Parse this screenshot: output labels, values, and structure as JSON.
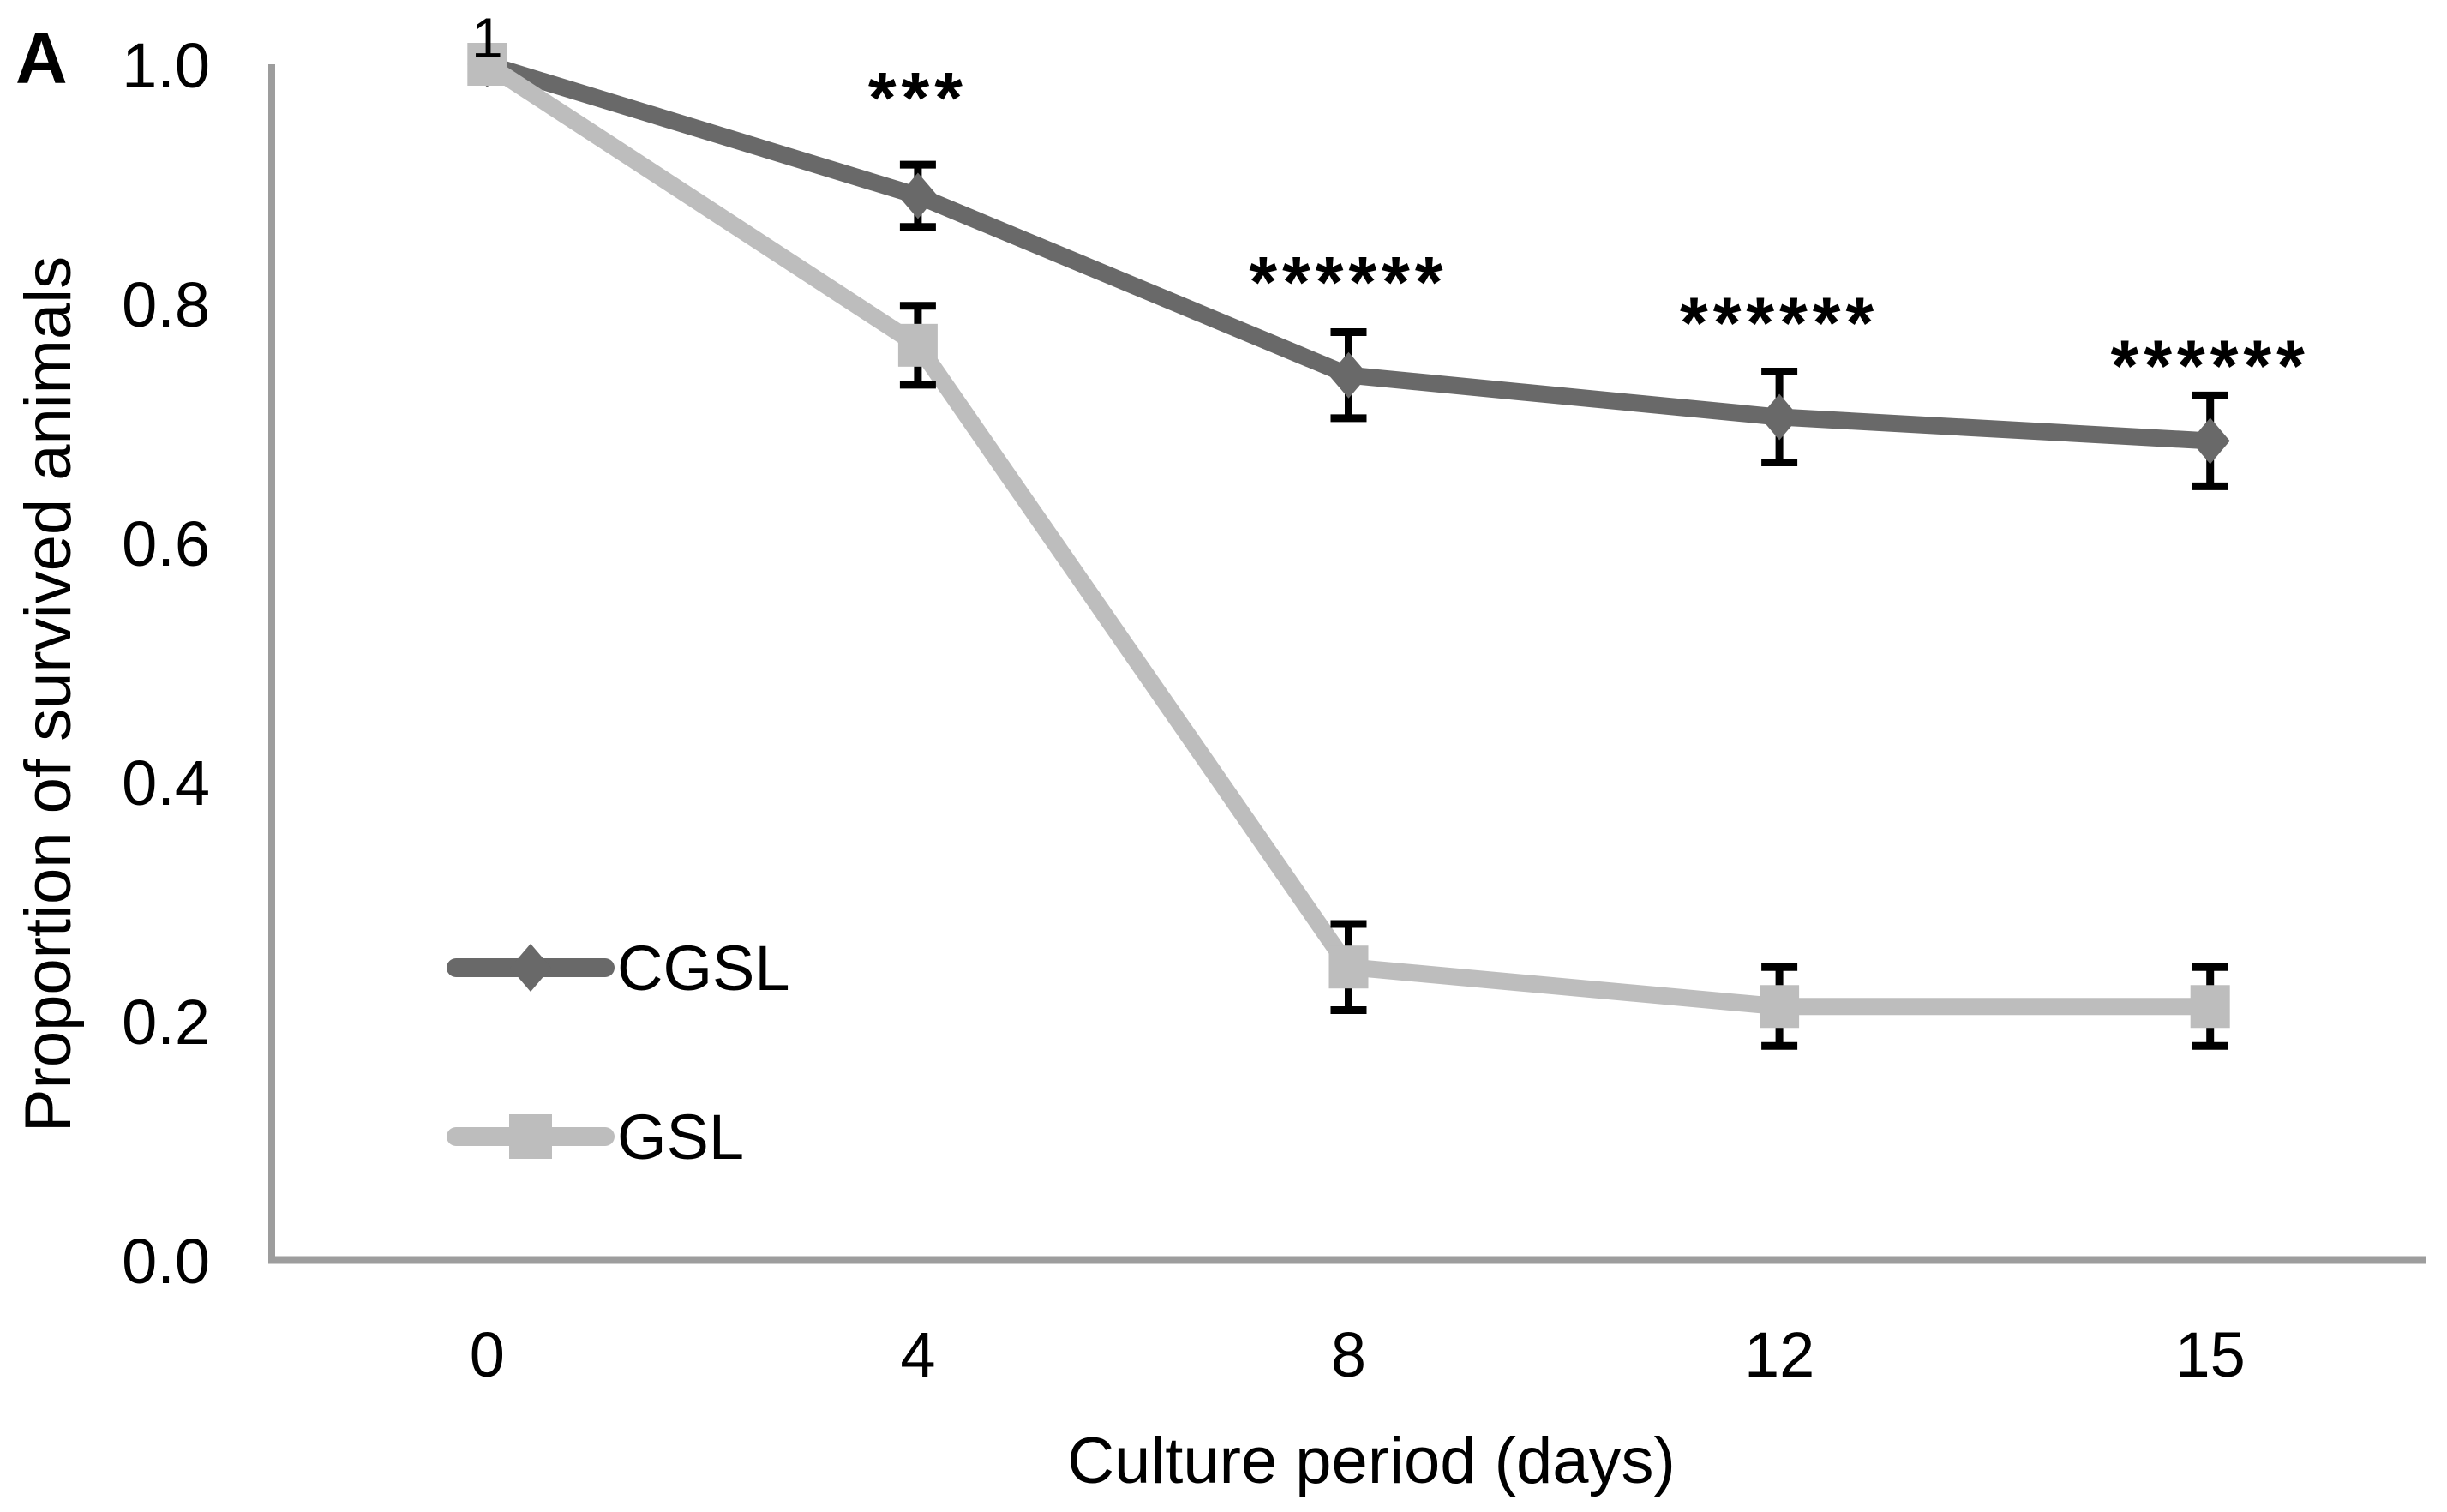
{
  "panel_label": "A",
  "colors": {
    "cgsl_series": "#696969",
    "gsl_series": "#bdbdbd",
    "axis_line": "#9d9d9d",
    "text": "#000000",
    "error_bar": "#000000",
    "background": "#ffffff"
  },
  "chart_data": {
    "type": "line",
    "title": "",
    "xlabel": "Culture period (days)",
    "ylabel": "Proportion of survived animals",
    "x_categories": [
      "0",
      "4",
      "8",
      "12",
      "15"
    ],
    "y_ticks": [
      "1.0",
      "0.8",
      "0.6",
      "0.4",
      "0.2",
      "0.0"
    ],
    "ylim": [
      0.0,
      1.0
    ],
    "grid": false,
    "legend_position": "inside-left-middle",
    "series": [
      {
        "name": "CGSL",
        "marker": "diamond",
        "color": "#696969",
        "values": [
          1.0,
          0.89,
          0.74,
          0.705,
          0.685
        ],
        "errors": [
          0,
          0.026,
          0.036,
          0.038,
          0.038
        ]
      },
      {
        "name": "GSL",
        "marker": "square",
        "color": "#bdbdbd",
        "values": [
          1.0,
          0.765,
          0.245,
          0.212,
          0.212
        ],
        "errors": [
          0,
          0.033,
          0.036,
          0.033,
          0.033
        ]
      }
    ],
    "point_labels": [
      {
        "series": "GSL",
        "index": 0,
        "text": "1"
      }
    ],
    "annotations": [
      {
        "text": "***",
        "x_index": 1,
        "y": 0.982
      },
      {
        "text": "******",
        "x_index": 2,
        "y": 0.828
      },
      {
        "text": "******",
        "x_index": 3,
        "y": 0.794
      },
      {
        "text": "******",
        "x_index": 4,
        "y": 0.758
      }
    ]
  }
}
